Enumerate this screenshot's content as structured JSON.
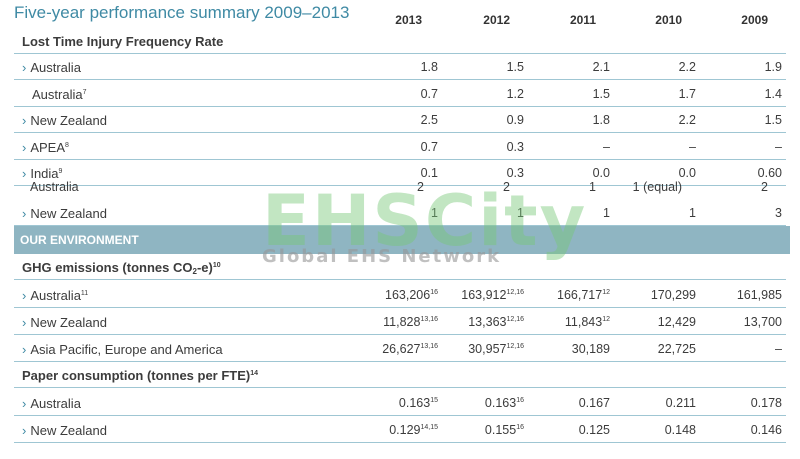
{
  "title": "Five-year performance summary 2009–2013",
  "years": [
    "2013",
    "2012",
    "2011",
    "2010",
    "2009"
  ],
  "sections": {
    "ltifr": "Lost Time Injury Frequency Rate",
    "our_environment": "OUR ENVIRONMENT",
    "ghg_label": "GHG emissions (tonnes CO",
    "ghg_sub": "2",
    "ghg_tail": "-e)",
    "ghg_sup": "10",
    "paper_label": "Paper consumption (tonnes per FTE)",
    "paper_sup": "14"
  },
  "ltifr_rows": [
    {
      "label": "Australia",
      "sup": "",
      "chev": true,
      "values": [
        "1.8",
        "1.5",
        "2.1",
        "2.2",
        "1.9"
      ]
    },
    {
      "label": "Australia",
      "sup": "7",
      "chev": false,
      "values": [
        "0.7",
        "1.2",
        "1.5",
        "1.7",
        "1.4"
      ]
    },
    {
      "label": "New Zealand",
      "sup": "",
      "chev": true,
      "values": [
        "2.5",
        "0.9",
        "1.8",
        "2.2",
        "1.5"
      ]
    },
    {
      "label": "APEA",
      "sup": "8",
      "chev": true,
      "values": [
        "0.7",
        "0.3",
        "–",
        "–",
        "–"
      ]
    },
    {
      "label": "India",
      "sup": "9",
      "chev": true,
      "values": [
        "0.1",
        "0.3",
        "0.0",
        "0.0",
        "0.60"
      ]
    }
  ],
  "overlap_row": {
    "label": "Australia",
    "values": [
      "2",
      "2",
      "1",
      "1 (equal)",
      "2"
    ]
  },
  "nz_rank_row": {
    "label": "New Zealand",
    "values": [
      "1",
      "1",
      "1",
      "1",
      "3"
    ]
  },
  "ghg_rows": [
    {
      "label": "Australia",
      "sup": "11",
      "values": [
        [
          "163,206",
          "16"
        ],
        [
          "163,912",
          "12,16"
        ],
        [
          "166,717",
          "12"
        ],
        [
          "170,299",
          ""
        ],
        [
          "161,985",
          ""
        ]
      ]
    },
    {
      "label": "New Zealand",
      "sup": "",
      "values": [
        [
          "11,828",
          "13,16"
        ],
        [
          "13,363",
          "12,16"
        ],
        [
          "11,843",
          "12"
        ],
        [
          "12,429",
          ""
        ],
        [
          "13,700",
          ""
        ]
      ]
    },
    {
      "label": "Asia Pacific, Europe and America",
      "sup": "",
      "values": [
        [
          "26,627",
          "13,16"
        ],
        [
          "30,957",
          "12,16"
        ],
        [
          "30,189",
          ""
        ],
        [
          "22,725",
          ""
        ],
        [
          "–",
          ""
        ]
      ]
    }
  ],
  "paper_rows": [
    {
      "label": "Australia",
      "sup": "",
      "values": [
        [
          "0.163",
          "15"
        ],
        [
          "0.163",
          "16"
        ],
        [
          "0.167",
          ""
        ],
        [
          "0.211",
          ""
        ],
        [
          "0.178",
          ""
        ]
      ]
    },
    {
      "label": "New Zealand",
      "sup": "",
      "values": [
        [
          "0.129",
          "14,15"
        ],
        [
          "0.155",
          "16"
        ],
        [
          "0.125",
          ""
        ],
        [
          "0.148",
          ""
        ],
        [
          "0.146",
          ""
        ]
      ]
    }
  ],
  "watermark": {
    "main": "EHSCity",
    "sub": "Global EHS Network"
  },
  "chevron": "›",
  "colors": {
    "accent": "#3f8aa4",
    "band": "#8fb5c2",
    "rule": "#9fc6d3",
    "watermark": "#78c878"
  }
}
